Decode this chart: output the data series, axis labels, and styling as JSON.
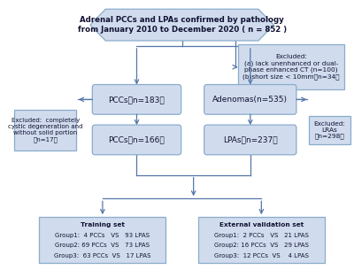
{
  "bg_color": "#ffffff",
  "box_fill": "#d0dced",
  "box_edge": "#8aaccc",
  "arrow_color": "#5577aa",
  "font_color": "#111133",
  "title_text": "Adrenal PCCs and LPAs confirmed by pathology\nfrom January 2010 to December 2020 ( n = 852 )",
  "excl1_text": "Excluded:\n(a) lack unenhanced or dual-\nphase enhanced CT (n=100)\n(b)short size < 10mm（n=34）",
  "pccs183_text": "PCCs（n=183）",
  "adenomas_text": "Adenomas(n=535)",
  "excl2_text": "Excluded:  completely\ncystic degeneration and\nwithout solid portion\n（n=17）",
  "excl3_text": "Excluded:\nLRAs\n（n=298）",
  "pccs166_text": "PCCs（n=166）",
  "lpas_text": "LPAs（n=237）",
  "training_title": "Training set",
  "training_lines": [
    "Group1:  4 PCCs   VS   93 LPAS",
    "Group2: 69 PCCs  VS   73 LPAS",
    "Group3:  63 PCCs  VS   17 LPAS"
  ],
  "validation_title": "External validation set",
  "validation_lines": [
    "Group1:  2 PCCs   VS   21 LPAS",
    "Group2: 16 PCCs  VS   29 LPAS",
    "Group3:  12 PCCs  VS    4 LPAS"
  ]
}
